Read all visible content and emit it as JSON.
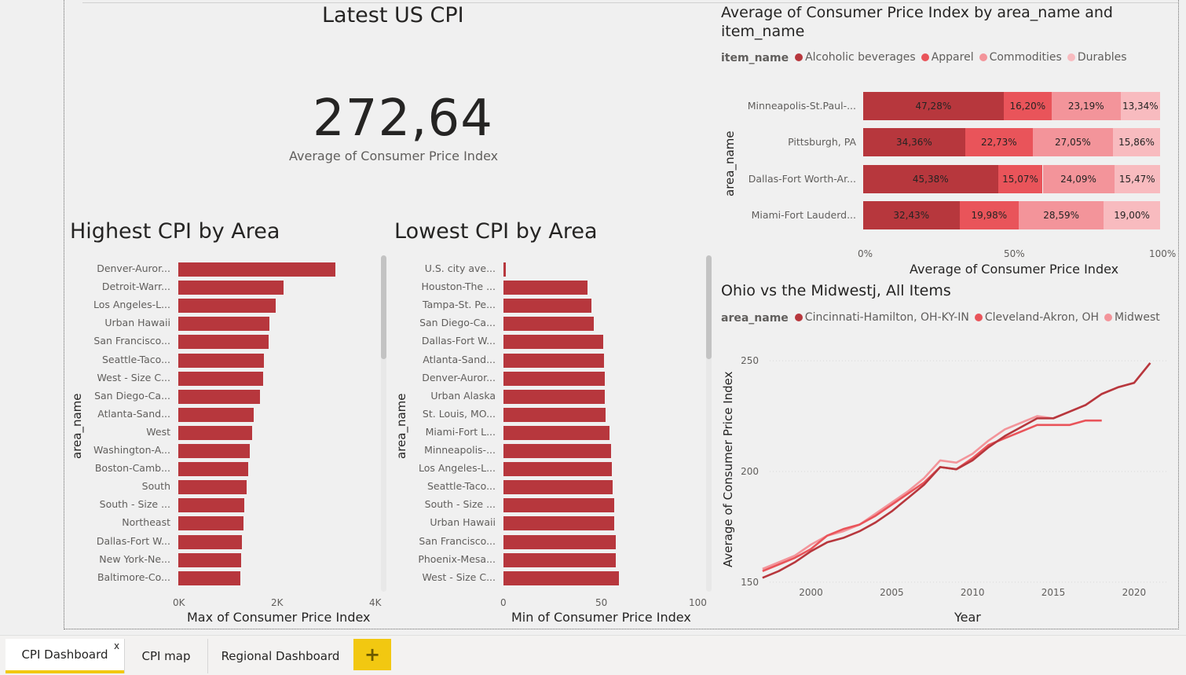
{
  "card": {
    "title": "Latest US CPI",
    "value": "272,64",
    "label": "Average of Consumer Price Index"
  },
  "highest": {
    "title": "Highest CPI by Area",
    "y_title": "area_name",
    "x_title": "Max of Consumer Price Index",
    "ticks": [
      "0K",
      "2K",
      "4K"
    ],
    "chart_data": {
      "type": "bar",
      "orientation": "horizontal",
      "categories": [
        "Denver-Auror...",
        "Detroit-Warr...",
        "Los Angeles-L...",
        "Urban Hawaii",
        "San Francisco...",
        "Seattle-Taco...",
        "West - Size C...",
        "San Diego-Ca...",
        "Atlanta-Sand...",
        "West",
        "Washington-A...",
        "Boston-Camb...",
        "South",
        "South - Size ...",
        "Northeast",
        "Dallas-Fort W...",
        "New York-Ne...",
        "Baltimore-Co..."
      ],
      "values": [
        3200,
        2150,
        1980,
        1850,
        1840,
        1740,
        1730,
        1660,
        1530,
        1510,
        1450,
        1420,
        1390,
        1340,
        1320,
        1290,
        1280,
        1270
      ],
      "xlim": [
        0,
        4000
      ]
    }
  },
  "lowest": {
    "title": "Lowest CPI by Area",
    "y_title": "area_name",
    "x_title": "Min of Consumer Price Index",
    "ticks": [
      "0",
      "50",
      "100"
    ],
    "chart_data": {
      "type": "bar",
      "orientation": "horizontal",
      "categories": [
        "U.S. city ave...",
        "Houston-The ...",
        "Tampa-St. Pe...",
        "San Diego-Ca...",
        "Dallas-Fort W...",
        "Atlanta-Sand...",
        "Denver-Auror...",
        "Urban Alaska",
        "St. Louis, MO...",
        "Miami-Fort L...",
        "Minneapolis-...",
        "Los Angeles-L...",
        "Seattle-Taco...",
        "South - Size ...",
        "Urban Hawaii",
        "San Francisco...",
        "Phoenix-Mesa...",
        "West - Size C..."
      ],
      "values": [
        1.2,
        43.5,
        45.5,
        46.5,
        51.5,
        52,
        52.2,
        52.2,
        52.6,
        54.6,
        55.5,
        56,
        56.3,
        57,
        57.2,
        57.7,
        57.8,
        59.7
      ],
      "xlim": [
        0,
        100
      ]
    }
  },
  "stacked": {
    "title": "Average of Consumer Price Index by area_name and item_name",
    "title_line1": "Average of Consumer Price Index by area_name and",
    "title_line2": "item_name",
    "legend_title": "item_name",
    "y_title": "area_name",
    "x_title": "Average of Consumer Price Index",
    "ticks": [
      "0%",
      "50%",
      "100%"
    ],
    "chart_data": {
      "type": "bar",
      "stacked": "100%",
      "orientation": "horizontal",
      "categories": [
        "Minneapolis-St.Paul-...",
        "Pittsburgh, PA",
        "Dallas-Fort Worth-Ar...",
        "Miami-Fort Lauderd..."
      ],
      "series": [
        {
          "name": "Alcoholic beverages",
          "values": [
            47.28,
            34.36,
            45.38,
            32.43
          ],
          "labels": [
            "47,28%",
            "34,36%",
            "45,38%",
            "32,43%"
          ]
        },
        {
          "name": "Apparel",
          "values": [
            16.2,
            22.73,
            15.07,
            19.98
          ],
          "labels": [
            "16,20%",
            "22,73%",
            "15,07%",
            "19,98%"
          ]
        },
        {
          "name": "Commodities",
          "values": [
            23.19,
            27.05,
            24.09,
            28.59
          ],
          "labels": [
            "23,19%",
            "27,05%",
            "24,09%",
            "28,59%"
          ]
        },
        {
          "name": "Durables",
          "values": [
            13.34,
            15.86,
            15.47,
            19.0
          ],
          "labels": [
            "13,34%",
            "15,86%",
            "15,47%",
            "19,00%"
          ]
        }
      ],
      "colors": [
        "#b7373d",
        "#e9545a",
        "#f3949a",
        "#f8bbbf"
      ],
      "xlim": [
        0,
        100
      ]
    }
  },
  "line": {
    "title": "Ohio vs the Midwestj, All Items",
    "legend_title": "area_name",
    "y_title": "Average of Consumer Price Index",
    "x_title": "Year",
    "yticks": [
      "250",
      "200",
      "150"
    ],
    "xticks": [
      "2000",
      "2005",
      "2010",
      "2015",
      "2020"
    ],
    "chart_data": {
      "type": "line",
      "xlim": [
        1995.5,
        2022
      ],
      "ylim": [
        145,
        255
      ],
      "series": [
        {
          "name": "Cincinnati-Hamilton, OH-KY-IN",
          "color": "#b7373d",
          "x": [
            1997,
            1998,
            1999,
            2000,
            2001,
            2002,
            2003,
            2004,
            2005,
            2006,
            2007,
            2008,
            2009,
            2010,
            2011,
            2012,
            2013,
            2014,
            2015,
            2016,
            2017,
            2018,
            2019,
            2020,
            2021
          ],
          "y": [
            152,
            155,
            159,
            164,
            168,
            170,
            173,
            177,
            182,
            188,
            194,
            202,
            201,
            205,
            211,
            216,
            220,
            224,
            224,
            227,
            230,
            235,
            238,
            240,
            249
          ]
        },
        {
          "name": "Cleveland-Akron, OH",
          "color": "#e9545a",
          "x": [
            1997,
            1998,
            1999,
            2000,
            2001,
            2002,
            2003,
            2004,
            2005,
            2006,
            2007,
            2008,
            2009,
            2010,
            2011,
            2012,
            2013,
            2014,
            2015,
            2016,
            2017,
            2018
          ],
          "y": [
            155,
            158,
            161,
            165,
            171,
            174,
            176,
            180,
            185,
            190,
            195,
            202,
            201,
            206,
            212,
            215,
            218,
            221,
            221,
            221,
            223,
            223
          ]
        },
        {
          "name": "Midwest",
          "color": "#f3949a",
          "x": [
            1997,
            1998,
            1999,
            2000,
            2001,
            2002,
            2003,
            2004,
            2005,
            2006,
            2007,
            2008,
            2009,
            2010,
            2011,
            2012,
            2013,
            2014,
            2015,
            2016,
            2017,
            2018,
            2019,
            2020,
            2021
          ],
          "y": [
            156,
            159,
            162,
            167,
            171,
            173,
            176,
            181,
            186,
            191,
            197,
            205,
            204,
            208,
            214,
            219,
            222,
            225,
            224,
            227,
            230,
            235,
            238,
            240,
            249
          ]
        }
      ]
    }
  },
  "tabs": {
    "items": [
      "CPI Dashboard",
      "CPI map",
      "Regional Dashboard"
    ],
    "close": "x",
    "add": "+"
  }
}
